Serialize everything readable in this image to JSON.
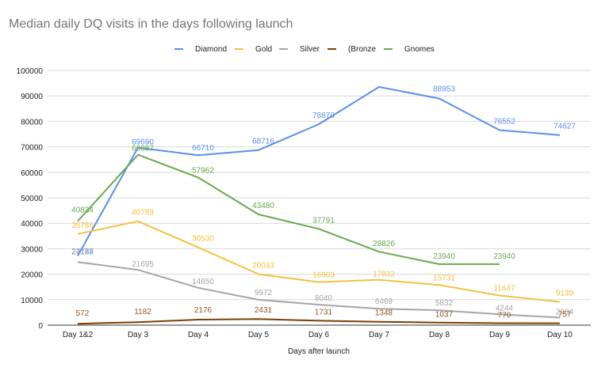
{
  "chart_data": {
    "type": "line",
    "title": "Median daily DQ visits in the days following launch",
    "xlabel": "Days after launch",
    "ylabel": "",
    "ylim": [
      0,
      100000
    ],
    "yticks": [
      0,
      10000,
      20000,
      30000,
      40000,
      50000,
      60000,
      70000,
      80000,
      90000,
      100000
    ],
    "categories": [
      "Day 1&2",
      "Day 3",
      "Day 4",
      "Day 5",
      "Day 6",
      "Day 7",
      "Day 8",
      "Day 9",
      "Day 10"
    ],
    "legend_position": "top",
    "grid": true,
    "series": [
      {
        "name": "Diamond",
        "color": "#5B8FE8",
        "values": [
          27188,
          69690,
          66710,
          68716,
          78870,
          93500,
          88953,
          76552,
          74627
        ],
        "labels": [
          "27188",
          "69690",
          "66710",
          "68716",
          "78870",
          "",
          "88953",
          "76552",
          "74627"
        ]
      },
      {
        "name": "Gold",
        "color": "#F2C241",
        "values": [
          35786,
          40789,
          30530,
          20033,
          16903,
          17832,
          15731,
          11647,
          9139
        ],
        "labels": [
          "35786",
          "40789",
          "30530",
          "20033",
          "16903",
          "17832",
          "15731",
          "11647",
          "9139"
        ]
      },
      {
        "name": "Silver",
        "color": "#A5A5A5",
        "values": [
          24777,
          21695,
          14650,
          9972,
          8040,
          6469,
          5832,
          4244,
          2984
        ],
        "labels": [
          "24777",
          "21695",
          "14650",
          "9972",
          "8040",
          "6469",
          "5832",
          "4244",
          "2984"
        ]
      },
      {
        "name": "(Bronze",
        "color": "#7B3F00",
        "values": [
          572,
          1182,
          2176,
          2431,
          1731,
          1348,
          1037,
          770,
          757
        ],
        "labels": [
          "572",
          "1182",
          "2176",
          "2431",
          "1731",
          "1348",
          "1037",
          "770",
          "757"
        ]
      },
      {
        "name": "Gnomes",
        "color": "#6AA84F",
        "values": [
          40834,
          66887,
          57962,
          43480,
          37791,
          28826,
          23940,
          23940,
          null
        ],
        "labels": [
          "40834",
          "66887",
          "57962",
          "43480",
          "37791",
          "28826",
          "23940",
          "23940",
          ""
        ]
      }
    ]
  }
}
